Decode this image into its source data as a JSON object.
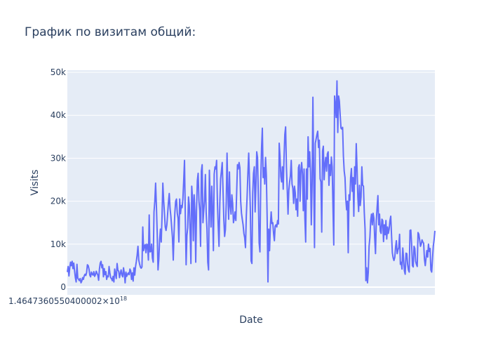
{
  "chart_data": {
    "type": "line",
    "title": "График по визитам общий:",
    "xlabel": "Date",
    "ylabel": "Visits",
    "x_tick_label": "1.4647360550400002×10",
    "x_tick_exponent": "18",
    "ylim": [
      -1800,
      50500
    ],
    "y_ticks": [
      0,
      10000,
      20000,
      30000,
      40000,
      50000
    ],
    "y_tick_labels": [
      "0",
      "10k",
      "20k",
      "30k",
      "40k",
      "50k"
    ],
    "grid": true,
    "colors": {
      "plot_bg": "#e5ecf6",
      "grid": "#ffffff",
      "line": "#636efa",
      "text": "#2a3f5f"
    },
    "series": [
      {
        "values": [
          3500,
          4800,
          2600,
          4500,
          5800,
          5000,
          6000,
          4300,
          5600,
          3800,
          2200,
          1200,
          5300,
          2100,
          1800,
          1500,
          2000,
          1000,
          1400,
          2200,
          1800,
          2600,
          3000,
          2700,
          3400,
          5200,
          5000,
          4200,
          2800,
          2400,
          3500,
          3000,
          2800,
          3600,
          2500,
          2900,
          3700,
          3200,
          2800,
          1600,
          4200,
          5600,
          6000,
          4500,
          5200,
          2400,
          4300,
          2900,
          3600,
          1800,
          2600,
          2400,
          4800,
          3300,
          2200,
          2000,
          1500,
          2500,
          1200,
          4200,
          3100,
          2000,
          5500,
          3900,
          3700,
          2200,
          3200,
          4000,
          2800,
          2400,
          4500,
          3200,
          1000,
          3500,
          2500,
          3000,
          3300,
          2900,
          4200,
          3800,
          1800,
          3300,
          1400,
          4500,
          2800,
          4800,
          6000,
          7500,
          9500,
          6300,
          5400,
          4700,
          4400,
          4700,
          14000,
          8500,
          9500,
          9900,
          8000,
          10000,
          9800,
          6300,
          16800,
          8200,
          8300,
          10000,
          6800,
          5800,
          17500,
          20000,
          24200,
          18800,
          12500,
          4000,
          6500,
          11000,
          13500,
          10500,
          16500,
          24200,
          20300,
          17200,
          14000,
          13200,
          14500,
          17100,
          19800,
          21800,
          18300,
          16500,
          14000,
          11500,
          6300,
          12800,
          17400,
          20000,
          20500,
          17200,
          16000,
          10500,
          20500,
          17100,
          19000,
          18500,
          20500,
          24800,
          29500,
          16500,
          5200,
          12000,
          13800,
          21000,
          19000,
          13000,
          5500,
          23500,
          20500,
          10800,
          21500,
          17500,
          5800,
          18100,
          24800,
          26500,
          20000,
          17800,
          9500,
          27000,
          28500,
          15000,
          17800,
          20300,
          26200,
          17400,
          13500,
          5800,
          4000,
          27200,
          20500,
          14000,
          23500,
          17800,
          8500,
          26300,
          28000,
          27500,
          29500,
          19700,
          14300,
          9500,
          19500,
          25200,
          27000,
          29000,
          22500,
          15800,
          11800,
          13400,
          19600,
          31200,
          22300,
          15800,
          26800,
          18900,
          17000,
          21500,
          19500,
          15000,
          16000,
          17500,
          15500,
          22000,
          28500,
          27500,
          29000,
          27800,
          20000,
          17200,
          15800,
          14500,
          12500,
          11500,
          9200,
          16500,
          21000,
          26500,
          31200,
          25000,
          18400,
          6100,
          5500,
          21800,
          26500,
          28000,
          17500,
          23500,
          31500,
          30200,
          21000,
          10300,
          8200,
          24500,
          32300,
          37000,
          25500,
          27800,
          24000,
          30200,
          26000,
          16000,
          1200,
          13500,
          8500,
          14200,
          17500,
          14800,
          15000,
          12500,
          10800,
          14200,
          14500,
          14000,
          15500,
          14700,
          33500,
          30500,
          25800,
          24500,
          28000,
          22800,
          30000,
          35500,
          37300,
          28000,
          22800,
          17000,
          22500,
          24500,
          26000,
          29500,
          24000,
          23000,
          19500,
          23500,
          22000,
          18000,
          20500,
          16500,
          27800,
          28500,
          20000,
          27000,
          29000,
          26300,
          17800,
          27500,
          16000,
          10500,
          27500,
          20500,
          35000,
          28000,
          31500,
          26800,
          14500,
          24000,
          44200,
          25000,
          9200,
          33500,
          34500,
          35500,
          36300,
          32500,
          34200,
          25200,
          24500,
          12800,
          31700,
          32800,
          25000,
          28500,
          30200,
          27000,
          31000,
          31500,
          23700,
          28500,
          26000,
          30300,
          28000,
          18500,
          9800,
          44500,
          42500,
          39500,
          48000,
          36000,
          44500,
          43300,
          40000,
          37000,
          36800,
          37200,
          30500,
          27000,
          25500,
          20500,
          18000,
          20000,
          8000,
          21500,
          20200,
          25500,
          27600,
          22300,
          25500,
          16500,
          28000,
          24000,
          33400,
          27700,
          21000,
          17600,
          23700,
          19000,
          21000,
          28000,
          23700,
          23500,
          17500,
          13500,
          1500,
          4500,
          1000,
          3500,
          9500,
          11500,
          15500,
          17000,
          14500,
          17200,
          16000,
          11500,
          7800,
          15500,
          18500,
          21300,
          14500,
          17000,
          13000,
          12500,
          15800,
          15500,
          10600,
          14500,
          12200,
          15500,
          11200,
          14000,
          12500,
          13500,
          15500,
          16500,
          12000,
          8000,
          6800,
          6200,
          6900,
          9300,
          10800,
          7800,
          8700,
          9200,
          12300,
          5300,
          5800,
          4200,
          9100,
          6500,
          3800,
          3000,
          7900,
          7800,
          5300,
          4000,
          3500,
          13200,
          13300,
          10000,
          5000,
          4700,
          9500,
          9000,
          6000,
          5300,
          4800,
          12700,
          12300,
          11000,
          9500,
          10000,
          11000,
          10500,
          10200,
          6500,
          5000,
          6800,
          8500,
          7000,
          10000,
          8300,
          9000,
          4000,
          3500,
          6500,
          9500,
          11000,
          13100
        ]
      }
    ]
  }
}
